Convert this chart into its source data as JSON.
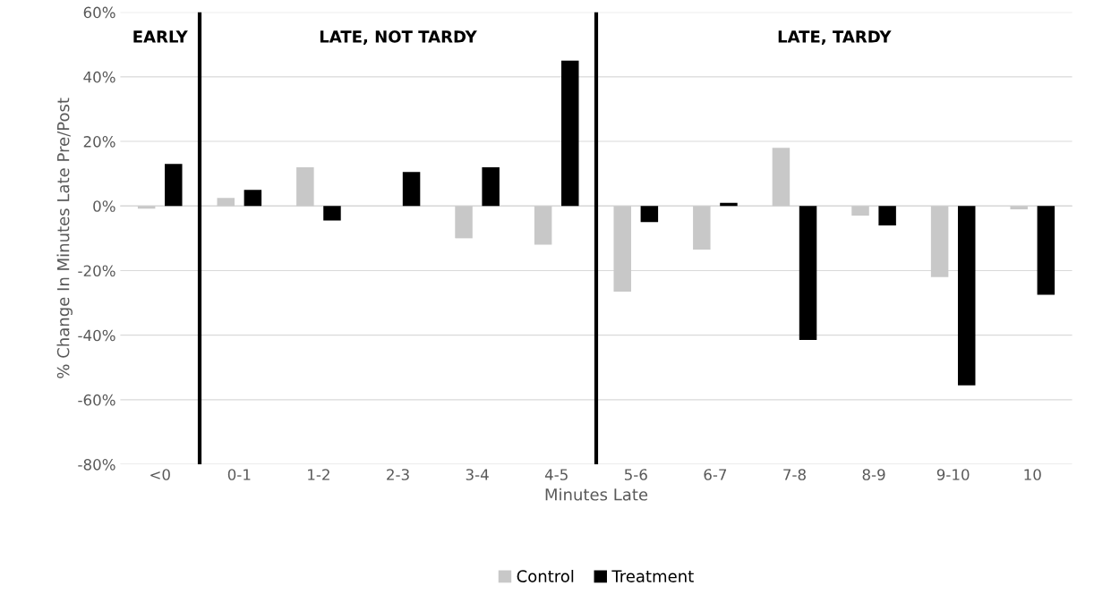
{
  "chart_data": {
    "type": "bar",
    "xlabel": "Minutes Late",
    "ylabel": "% Change In Minutes Late Pre/Post",
    "categories": [
      "<0",
      "0-1",
      "1-2",
      "2-3",
      "3-4",
      "4-5",
      "5-6",
      "6-7",
      "7-8",
      "8-9",
      "9-10",
      "10"
    ],
    "series": [
      {
        "name": "Control",
        "color": "#c8c8c8",
        "values": [
          -0.8,
          2.5,
          12,
          null,
          -10,
          -12,
          -26.5,
          -13.5,
          18,
          -3,
          -22,
          -1
        ]
      },
      {
        "name": "Treatment",
        "color": "#000000",
        "values": [
          13,
          5,
          -4.5,
          10.5,
          12,
          45,
          -5,
          1,
          -41.5,
          -6,
          -55.5,
          -27.5
        ]
      }
    ],
    "ylim": [
      -80,
      60
    ],
    "yticks": [
      {
        "value": -80,
        "label": "-80%"
      },
      {
        "value": -60,
        "label": "-60%"
      },
      {
        "value": -40,
        "label": "-40%"
      },
      {
        "value": -20,
        "label": "-20%"
      },
      {
        "value": 0,
        "label": "0%"
      },
      {
        "value": 20,
        "label": "20%"
      },
      {
        "value": 40,
        "label": "40%"
      },
      {
        "value": 60,
        "label": "60%"
      }
    ],
    "annotations": [
      "EARLY",
      "LATE, NOT TARDY",
      "LATE, TARDY"
    ],
    "grid": "y",
    "legend": "bottom"
  }
}
